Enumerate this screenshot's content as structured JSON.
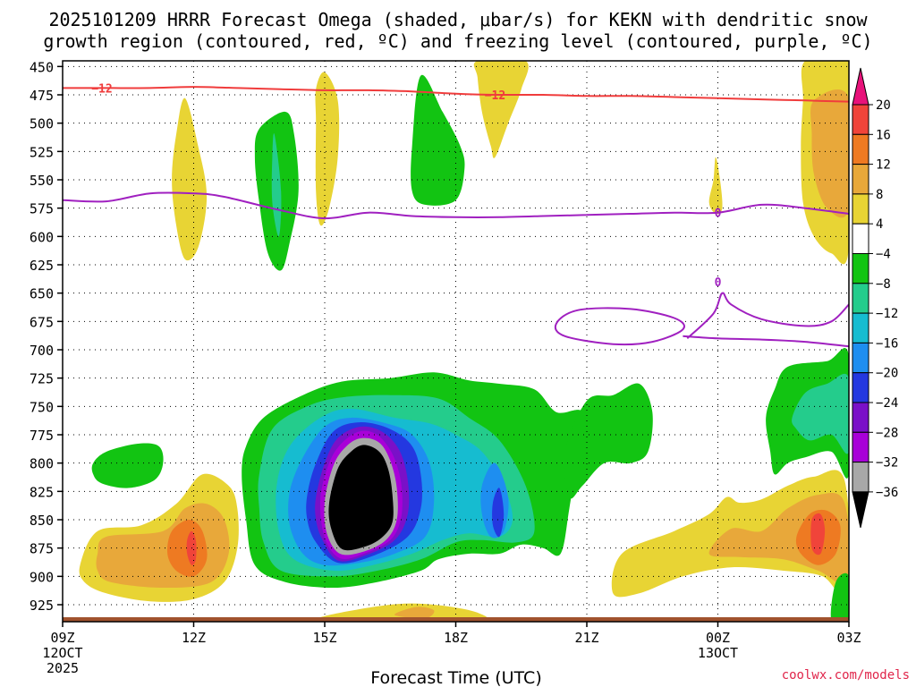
{
  "chart_data": {
    "type": "time-height contour",
    "title_line1": "2025101209 HRRR Forecast Omega (shaded, μbar/s) for KEKN with dendritic snow",
    "title_line2": "growth region (contoured, red, ºC) and freezing level (contoured, purple, ºC)",
    "xlabel": "Forecast Time (UTC)",
    "x_ticks": [
      {
        "hour": 0,
        "label": "09Z",
        "sub1": "12OCT",
        "sub2": "2025"
      },
      {
        "hour": 3,
        "label": "12Z",
        "sub1": "",
        "sub2": ""
      },
      {
        "hour": 6,
        "label": "15Z",
        "sub1": "",
        "sub2": ""
      },
      {
        "hour": 9,
        "label": "18Z",
        "sub1": "",
        "sub2": ""
      },
      {
        "hour": 12,
        "label": "21Z",
        "sub1": "",
        "sub2": ""
      },
      {
        "hour": 15,
        "label": "00Z",
        "sub1": "13OCT",
        "sub2": ""
      },
      {
        "hour": 18,
        "label": "03Z",
        "sub1": "",
        "sub2": ""
      }
    ],
    "xlim": [
      0,
      18
    ],
    "y_ticks": [
      450,
      475,
      500,
      525,
      550,
      575,
      600,
      625,
      650,
      675,
      700,
      725,
      750,
      775,
      800,
      825,
      850,
      875,
      900,
      925
    ],
    "ylim": [
      445,
      940
    ],
    "colorbar": {
      "labels": [
        "20",
        "16",
        "12",
        "8",
        "4",
        "−4",
        "−8",
        "−12",
        "−16",
        "−20",
        "−24",
        "−28",
        "−32",
        "−36"
      ],
      "colors": [
        "#e8127a",
        "#f0443a",
        "#ee7a22",
        "#e8a83a",
        "#e8d434",
        "#ffffff",
        "#12c412",
        "#24cc8c",
        "#16bcd0",
        "#1e8ef0",
        "#2438e0",
        "#7a10c8",
        "#a800d8",
        "#a8a8a8",
        "#000000"
      ]
    },
    "shading_colors": {
      "pos4": "#e8d434",
      "pos8": "#e8a83a",
      "pos12": "#ee7a22",
      "pos16": "#f0443a",
      "neg4": "#12c412",
      "neg8": "#24cc8c",
      "neg12": "#16bcd0",
      "neg16": "#1e8ef0",
      "neg20": "#2438e0",
      "neg24": "#7a10c8",
      "neg28": "#a800d8",
      "neg32": "#a8a8a8",
      "neg36": "#000000"
    },
    "dgz_contour": {
      "value_label": "−12",
      "color": "#f03c3c",
      "points": [
        [
          0,
          469
        ],
        [
          1,
          469
        ],
        [
          2,
          469
        ],
        [
          3,
          468
        ],
        [
          4,
          469
        ],
        [
          5,
          470
        ],
        [
          6,
          471
        ],
        [
          7,
          471
        ],
        [
          8,
          472
        ],
        [
          9,
          474
        ],
        [
          10,
          475
        ],
        [
          11,
          475
        ],
        [
          12,
          476
        ],
        [
          13,
          476
        ],
        [
          14,
          477
        ],
        [
          15,
          478
        ],
        [
          16,
          479
        ],
        [
          17,
          480
        ],
        [
          18,
          481
        ]
      ]
    },
    "freezing_contour": {
      "value_label": "0",
      "color": "#a020c0",
      "points": [
        [
          0,
          568
        ],
        [
          1,
          569
        ],
        [
          2,
          562
        ],
        [
          3,
          562
        ],
        [
          3.7,
          565
        ],
        [
          5,
          577
        ],
        [
          6,
          584
        ],
        [
          7,
          579
        ],
        [
          8,
          582
        ],
        [
          9,
          583
        ],
        [
          10,
          583
        ],
        [
          11,
          582
        ],
        [
          12,
          581
        ],
        [
          13,
          580
        ],
        [
          14,
          579
        ],
        [
          15,
          579
        ],
        [
          16,
          572
        ],
        [
          17,
          575
        ],
        [
          18,
          580
        ]
      ],
      "loop1": [
        [
          11.3,
          677
        ],
        [
          11.8,
          665
        ],
        [
          13,
          664
        ],
        [
          14,
          672
        ],
        [
          14.2,
          682
        ],
        [
          13.5,
          693
        ],
        [
          12.6,
          695
        ],
        [
          11.5,
          688
        ]
      ],
      "loop2": [
        [
          14.3,
          690
        ],
        [
          14.9,
          668
        ],
        [
          15.1,
          650
        ],
        [
          15.3,
          660
        ],
        [
          16,
          673
        ],
        [
          17,
          679
        ],
        [
          17.6,
          675
        ],
        [
          18,
          660
        ]
      ],
      "loop2_label_at": [
        15,
        640
      ],
      "bottom_line": [
        [
          14.2,
          688
        ],
        [
          15,
          690
        ],
        [
          16,
          691
        ],
        [
          17,
          693
        ],
        [
          18,
          697
        ]
      ]
    },
    "ground_level": 939,
    "watermark": "coolwx.com/models"
  }
}
